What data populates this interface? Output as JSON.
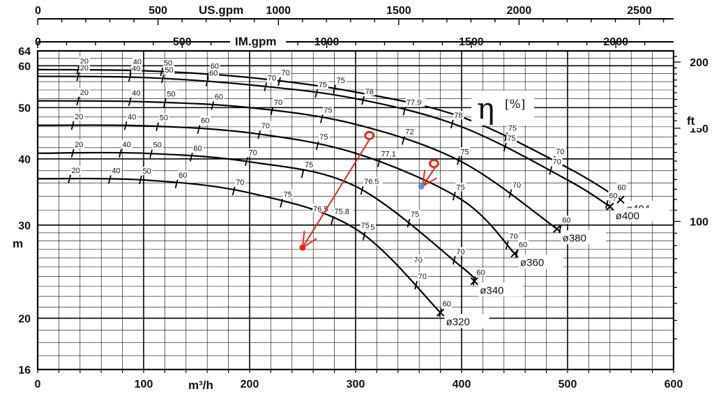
{
  "chart_data": {
    "type": "line",
    "title": "",
    "axes": {
      "x_bottom": {
        "label": "m³/h",
        "ticks": [
          "0",
          "100",
          "200",
          "300",
          "400",
          "500",
          "600"
        ],
        "range": [
          0,
          600
        ]
      },
      "x_top_us": {
        "label": "US.gpm",
        "ticks": [
          "0",
          "500",
          "1000",
          "1500",
          "2000",
          "2500"
        ]
      },
      "x_top_im": {
        "label": "IM.gpm",
        "ticks": [
          "0",
          "500",
          "1000",
          "1500",
          "2000"
        ]
      },
      "y_left": {
        "label": "m",
        "scale": "log",
        "ticks": [
          "16",
          "20",
          "30",
          "40",
          "50",
          "60",
          "64"
        ],
        "range": [
          16,
          64
        ]
      },
      "y_right": {
        "label": "ft",
        "ticks": [
          "100",
          "150",
          "200"
        ]
      }
    },
    "efficiency_label": {
      "symbol": "η",
      "unit": "[%]"
    },
    "grid": true,
    "series": [
      {
        "name": "ø404",
        "x": [
          0,
          100,
          200,
          300,
          400,
          500,
          550
        ],
        "y": [
          59.0,
          58.7,
          57.0,
          53.5,
          48.0,
          38.5,
          33.5
        ],
        "eff_marks": [
          {
            "x": 38,
            "label": "20"
          },
          {
            "x": 88,
            "label": "40"
          },
          {
            "x": 117,
            "label": "50"
          },
          {
            "x": 161,
            "label": "60"
          },
          {
            "x": 228,
            "label": "70"
          },
          {
            "x": 280,
            "label": "75"
          },
          {
            "x": 442,
            "label": "75"
          },
          {
            "x": 487,
            "label": "70"
          },
          {
            "x": 545,
            "label": "60"
          }
        ]
      },
      {
        "name": "ø400",
        "x": [
          0,
          100,
          200,
          300,
          400,
          500,
          540
        ],
        "y": [
          57.3,
          57.0,
          55.2,
          52.0,
          46.0,
          36.5,
          32.5
        ],
        "eff_marks": [
          {
            "x": 38,
            "label": "20"
          },
          {
            "x": 87,
            "label": "40"
          },
          {
            "x": 118,
            "label": "50"
          },
          {
            "x": 160,
            "label": "60"
          },
          {
            "x": 215,
            "label": "70"
          },
          {
            "x": 263,
            "label": "75"
          },
          {
            "x": 307,
            "label": "78"
          },
          {
            "x": 346,
            "label": "77.9"
          },
          {
            "x": 391,
            "label": "78"
          },
          {
            "x": 441,
            "label": "75"
          },
          {
            "x": 484,
            "label": "70"
          },
          {
            "x": 537,
            "label": "60"
          }
        ]
      },
      {
        "name": "ø380",
        "x": [
          0,
          100,
          200,
          300,
          400,
          490
        ],
        "y": [
          51.5,
          51.3,
          50.0,
          46.5,
          39.5,
          29.5
        ],
        "eff_marks": [
          {
            "x": 38,
            "label": "20"
          },
          {
            "x": 87,
            "label": "40"
          },
          {
            "x": 120,
            "label": "50"
          },
          {
            "x": 165,
            "label": "60"
          },
          {
            "x": 221,
            "label": "70"
          },
          {
            "x": 268,
            "label": "75"
          },
          {
            "x": 345,
            "label": "72"
          },
          {
            "x": 397,
            "label": "75"
          },
          {
            "x": 446,
            "label": "70"
          },
          {
            "x": 493,
            "label": "60"
          }
        ]
      },
      {
        "name": "ø360",
        "x": [
          0,
          100,
          200,
          300,
          400,
          450
        ],
        "y": [
          46.3,
          46.2,
          44.8,
          41.0,
          33.5,
          26.5
        ],
        "eff_marks": [
          {
            "x": 33,
            "label": "20"
          },
          {
            "x": 83,
            "label": "40"
          },
          {
            "x": 113,
            "label": "50"
          },
          {
            "x": 152,
            "label": "60"
          },
          {
            "x": 209,
            "label": "70"
          },
          {
            "x": 264,
            "label": "75"
          },
          {
            "x": 322,
            "label": "77.1"
          },
          {
            "x": 393,
            "label": "75"
          },
          {
            "x": 443,
            "label": "70"
          },
          {
            "x": 452,
            "label": "60"
          }
        ]
      },
      {
        "name": "ø340",
        "x": [
          0,
          100,
          200,
          300,
          400,
          412
        ],
        "y": [
          41.0,
          41.0,
          39.5,
          35.5,
          25.0,
          23.5
        ],
        "eff_marks": [
          {
            "x": 33,
            "label": "20"
          },
          {
            "x": 78,
            "label": "40"
          },
          {
            "x": 107,
            "label": "50"
          },
          {
            "x": 145,
            "label": "60"
          },
          {
            "x": 197,
            "label": "70"
          },
          {
            "x": 250,
            "label": "75"
          },
          {
            "x": 306,
            "label": "76.5"
          },
          {
            "x": 350,
            "label": "75"
          },
          {
            "x": 393,
            "label": "70"
          },
          {
            "x": 412,
            "label": "60"
          }
        ]
      },
      {
        "name": "ø320",
        "x": [
          0,
          100,
          200,
          300,
          380
        ],
        "y": [
          36.7,
          36.5,
          34.5,
          29.5,
          20.5
        ],
        "eff_marks": [
          {
            "x": 30,
            "label": "20"
          },
          {
            "x": 68,
            "label": "40"
          },
          {
            "x": 97,
            "label": "50"
          },
          {
            "x": 131,
            "label": "60"
          },
          {
            "x": 185,
            "label": "70"
          },
          {
            "x": 230,
            "label": "75"
          },
          {
            "x": 278,
            "label": "75.8"
          },
          {
            "x": 308,
            "label": "75"
          },
          {
            "x": 357,
            "label": "70"
          },
          {
            "x": 380,
            "label": "60"
          }
        ]
      }
    ],
    "free_labels": [
      {
        "x": 260,
        "y": 31.8,
        "label": "76.5"
      },
      {
        "x": 305,
        "y": 29.6,
        "label": "75"
      },
      {
        "x": 355,
        "y": 25.5,
        "label": "70"
      }
    ],
    "annotations": [
      {
        "type": "arrow",
        "from": [
          313,
          43.5
        ],
        "to": [
          250,
          27.2
        ],
        "color": "#e8271c"
      },
      {
        "type": "ring",
        "at": [
          313,
          44.3
        ],
        "color": "#e8271c"
      },
      {
        "type": "dot",
        "at": [
          250,
          27.2
        ],
        "color": "#e8271c"
      },
      {
        "type": "arrow",
        "from": [
          375,
          38.5
        ],
        "to": [
          363,
          35.5
        ],
        "color": "#e8271c"
      },
      {
        "type": "ring",
        "at": [
          374,
          39.2
        ],
        "color": "#e8271c"
      },
      {
        "type": "dot",
        "at": [
          362,
          35.5
        ],
        "color": "#4a9bd0"
      }
    ],
    "colors": {
      "curve": "#000000",
      "grid": "#000000",
      "annotation": "#e8271c",
      "point": "#4a9bd0"
    }
  }
}
